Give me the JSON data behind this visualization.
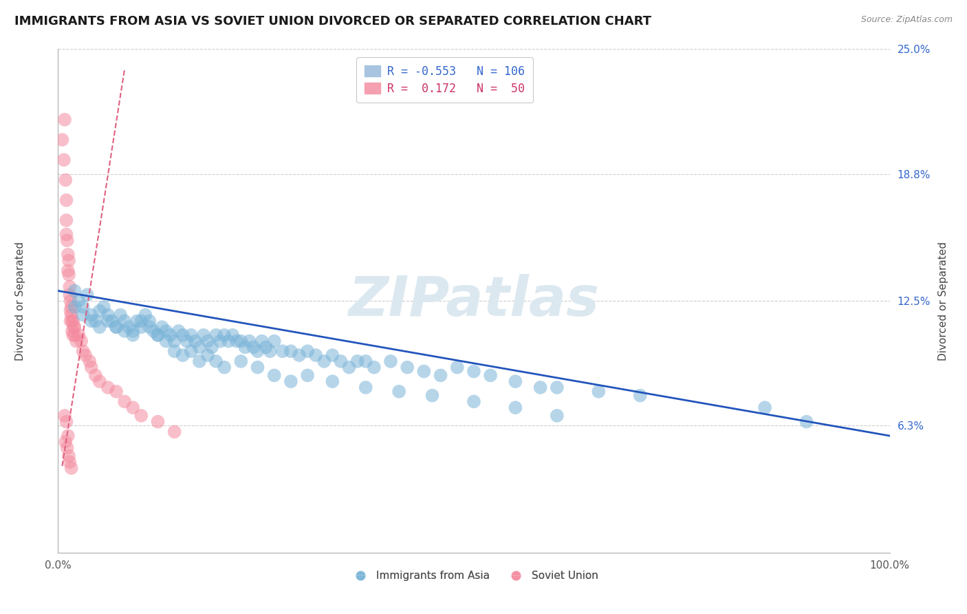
{
  "title": "IMMIGRANTS FROM ASIA VS SOVIET UNION DIVORCED OR SEPARATED CORRELATION CHART",
  "source_text": "Source: ZipAtlas.com",
  "ylabel": "Divorced or Separated",
  "xlim": [
    0,
    1.0
  ],
  "ylim": [
    0,
    0.25
  ],
  "ytick_positions": [
    0.063,
    0.125,
    0.188,
    0.25
  ],
  "ytick_labels": [
    "6.3%",
    "12.5%",
    "18.8%",
    "25.0%"
  ],
  "xtick_labels": [
    "0.0%",
    "100.0%"
  ],
  "watermark_text": "ZIPatlas",
  "background_color": "#ffffff",
  "grid_color": "#cccccc",
  "title_fontsize": 13,
  "ylabel_fontsize": 11,
  "tick_fontsize": 11,
  "blue_line_start_x": 0.0,
  "blue_line_start_y": 0.13,
  "blue_line_end_x": 1.0,
  "blue_line_end_y": 0.058,
  "pink_line_start_x": 0.005,
  "pink_line_start_y": 0.043,
  "pink_line_end_x": 0.08,
  "pink_line_end_y": 0.24,
  "blue_scatter_x": [
    0.02,
    0.025,
    0.03,
    0.035,
    0.04,
    0.045,
    0.05,
    0.055,
    0.06,
    0.065,
    0.07,
    0.075,
    0.08,
    0.085,
    0.09,
    0.095,
    0.1,
    0.105,
    0.11,
    0.115,
    0.12,
    0.125,
    0.13,
    0.135,
    0.14,
    0.145,
    0.15,
    0.155,
    0.16,
    0.165,
    0.17,
    0.175,
    0.18,
    0.185,
    0.19,
    0.195,
    0.2,
    0.205,
    0.21,
    0.215,
    0.22,
    0.225,
    0.23,
    0.235,
    0.24,
    0.245,
    0.25,
    0.255,
    0.26,
    0.27,
    0.28,
    0.29,
    0.3,
    0.31,
    0.32,
    0.33,
    0.34,
    0.35,
    0.36,
    0.37,
    0.38,
    0.4,
    0.42,
    0.44,
    0.46,
    0.48,
    0.5,
    0.52,
    0.55,
    0.58,
    0.6,
    0.65,
    0.7,
    0.02,
    0.03,
    0.04,
    0.05,
    0.06,
    0.07,
    0.08,
    0.09,
    0.1,
    0.11,
    0.12,
    0.13,
    0.14,
    0.15,
    0.16,
    0.17,
    0.18,
    0.19,
    0.2,
    0.22,
    0.24,
    0.26,
    0.28,
    0.3,
    0.33,
    0.37,
    0.41,
    0.45,
    0.5,
    0.55,
    0.6,
    0.85,
    0.9
  ],
  "blue_scatter_y": [
    0.13,
    0.125,
    0.122,
    0.128,
    0.118,
    0.115,
    0.12,
    0.122,
    0.118,
    0.115,
    0.112,
    0.118,
    0.115,
    0.112,
    0.11,
    0.115,
    0.112,
    0.118,
    0.115,
    0.11,
    0.108,
    0.112,
    0.11,
    0.108,
    0.105,
    0.11,
    0.108,
    0.105,
    0.108,
    0.105,
    0.102,
    0.108,
    0.105,
    0.102,
    0.108,
    0.105,
    0.108,
    0.105,
    0.108,
    0.105,
    0.105,
    0.102,
    0.105,
    0.102,
    0.1,
    0.105,
    0.102,
    0.1,
    0.105,
    0.1,
    0.1,
    0.098,
    0.1,
    0.098,
    0.095,
    0.098,
    0.095,
    0.092,
    0.095,
    0.095,
    0.092,
    0.095,
    0.092,
    0.09,
    0.088,
    0.092,
    0.09,
    0.088,
    0.085,
    0.082,
    0.082,
    0.08,
    0.078,
    0.122,
    0.118,
    0.115,
    0.112,
    0.115,
    0.112,
    0.11,
    0.108,
    0.115,
    0.112,
    0.108,
    0.105,
    0.1,
    0.098,
    0.1,
    0.095,
    0.098,
    0.095,
    0.092,
    0.095,
    0.092,
    0.088,
    0.085,
    0.088,
    0.085,
    0.082,
    0.08,
    0.078,
    0.075,
    0.072,
    0.068,
    0.072,
    0.065
  ],
  "pink_scatter_x": [
    0.005,
    0.007,
    0.008,
    0.009,
    0.01,
    0.01,
    0.01,
    0.011,
    0.012,
    0.012,
    0.013,
    0.013,
    0.014,
    0.014,
    0.015,
    0.015,
    0.015,
    0.016,
    0.016,
    0.017,
    0.017,
    0.018,
    0.018,
    0.019,
    0.02,
    0.02,
    0.022,
    0.025,
    0.028,
    0.03,
    0.033,
    0.038,
    0.04,
    0.045,
    0.05,
    0.06,
    0.07,
    0.08,
    0.09,
    0.1,
    0.12,
    0.14,
    0.008,
    0.01,
    0.012,
    0.009,
    0.011,
    0.013,
    0.014,
    0.016
  ],
  "pink_scatter_y": [
    0.205,
    0.195,
    0.215,
    0.185,
    0.175,
    0.165,
    0.158,
    0.155,
    0.148,
    0.14,
    0.145,
    0.138,
    0.132,
    0.128,
    0.125,
    0.12,
    0.115,
    0.122,
    0.118,
    0.115,
    0.11,
    0.115,
    0.108,
    0.112,
    0.112,
    0.108,
    0.105,
    0.108,
    0.105,
    0.1,
    0.098,
    0.095,
    0.092,
    0.088,
    0.085,
    0.082,
    0.08,
    0.075,
    0.072,
    0.068,
    0.065,
    0.06,
    0.068,
    0.065,
    0.058,
    0.055,
    0.052,
    0.048,
    0.045,
    0.042
  ]
}
